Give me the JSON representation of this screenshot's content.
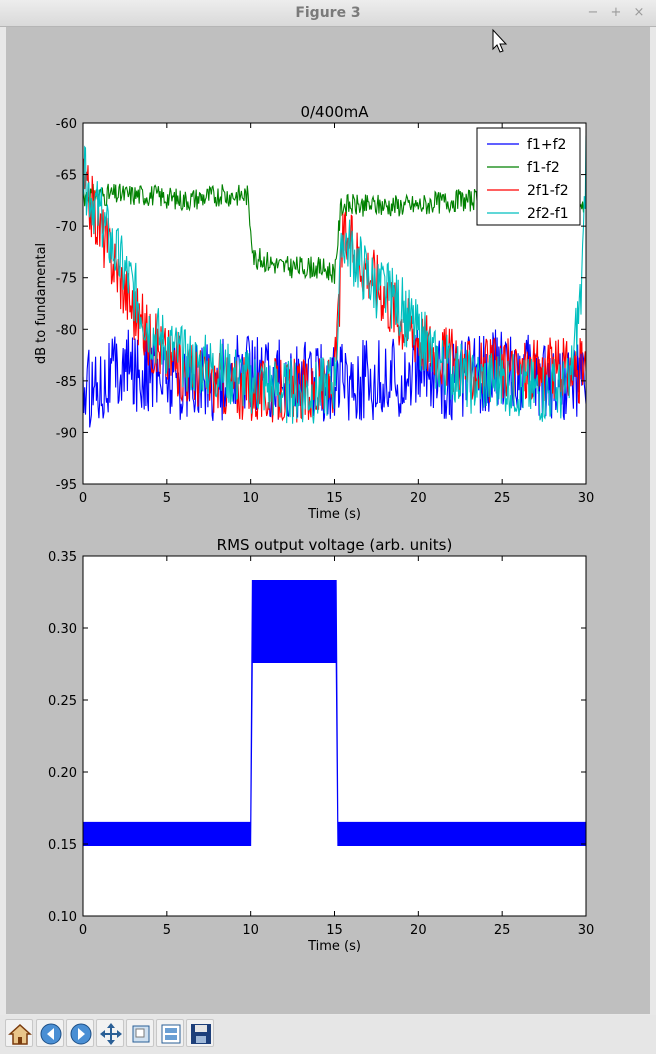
{
  "window": {
    "title": "Figure 3",
    "buttons": [
      "−",
      "+",
      "×"
    ]
  },
  "toolbar": {
    "icons": [
      "home-icon",
      "back-icon",
      "forward-icon",
      "pan-icon",
      "zoom-icon",
      "subplots-icon",
      "save-icon"
    ]
  },
  "colors": {
    "canvas_bg": "#bfbfbf",
    "f1f2sum": "#0000ff",
    "f1f2diff": "#008000",
    "2f1f2": "#ff0000",
    "2f2f1": "#00bfbf"
  },
  "chart_data": [
    {
      "type": "line",
      "title": "0/400mA",
      "xlabel": "Time (s)",
      "ylabel": "dB to fundamental",
      "xlim": [
        0,
        30
      ],
      "ylim": [
        -95,
        -60
      ],
      "xticks": [
        0,
        5,
        10,
        15,
        20,
        25,
        30
      ],
      "yticks": [
        -60,
        -65,
        -70,
        -75,
        -80,
        -85,
        -90,
        -95
      ],
      "grid": false,
      "legend_position": "top-right",
      "series": [
        {
          "name": "f1+f2",
          "color": "#0000ff",
          "x": [
            0,
            2,
            4,
            6,
            8,
            10,
            12,
            14,
            16,
            18,
            20,
            22,
            24,
            26,
            28,
            30
          ],
          "y": [
            -86,
            -84,
            -84,
            -85,
            -85,
            -84,
            -85,
            -85,
            -85,
            -85,
            -84,
            -85,
            -84,
            -84,
            -85,
            -85
          ]
        },
        {
          "name": "f1-f2",
          "color": "#008000",
          "x": [
            0,
            2,
            4,
            6,
            8,
            9.8,
            10.2,
            12,
            14,
            15,
            15.4,
            18,
            20,
            22,
            24,
            26,
            28,
            29.6,
            30
          ],
          "y": [
            -67,
            -67,
            -67,
            -67.5,
            -67,
            -67,
            -73,
            -74,
            -74,
            -74.5,
            -68,
            -68,
            -68,
            -67.5,
            -67.5,
            -67.5,
            -68,
            -67.5,
            -68
          ]
        },
        {
          "name": "2f1-f2",
          "color": "#ff0000",
          "x": [
            0,
            1,
            2,
            3,
            4,
            6,
            8,
            10,
            12,
            14,
            15,
            15.5,
            17,
            19,
            21,
            23,
            25,
            27,
            29,
            30
          ],
          "y": [
            -66,
            -70,
            -74,
            -78,
            -81,
            -84,
            -85,
            -86,
            -86,
            -86,
            -85,
            -71,
            -74,
            -79,
            -82,
            -84,
            -84,
            -84,
            -84,
            -84
          ]
        },
        {
          "name": "2f2-f1",
          "color": "#00bfbf",
          "x": [
            0,
            1,
            2,
            3,
            4,
            6,
            8,
            10,
            12,
            14,
            15,
            15.5,
            17,
            19,
            21,
            23,
            25,
            27,
            29,
            29.8,
            30
          ],
          "y": [
            -65,
            -69,
            -73,
            -76,
            -80,
            -83,
            -84,
            -85,
            -86,
            -86,
            -85,
            -71,
            -75,
            -78,
            -83,
            -85,
            -85,
            -86,
            -86,
            -75,
            -62
          ]
        }
      ]
    },
    {
      "type": "area",
      "title": "RMS output voltage (arb. units)",
      "xlabel": "Time (s)",
      "ylabel": "",
      "xlim": [
        0,
        30
      ],
      "ylim": [
        0.1,
        0.35
      ],
      "xticks": [
        0,
        5,
        10,
        15,
        20,
        25,
        30
      ],
      "yticks": [
        0.1,
        0.15,
        0.2,
        0.25,
        0.3,
        0.35
      ],
      "grid": false,
      "series": [
        {
          "name": "",
          "color": "#0000ff",
          "x": [
            0,
            10,
            10.1,
            15.1,
            15.2,
            30
          ],
          "upper": [
            0.165,
            0.165,
            0.333,
            0.333,
            0.165,
            0.165
          ],
          "lower": [
            0.149,
            0.149,
            0.276,
            0.276,
            0.149,
            0.149
          ]
        }
      ]
    }
  ]
}
